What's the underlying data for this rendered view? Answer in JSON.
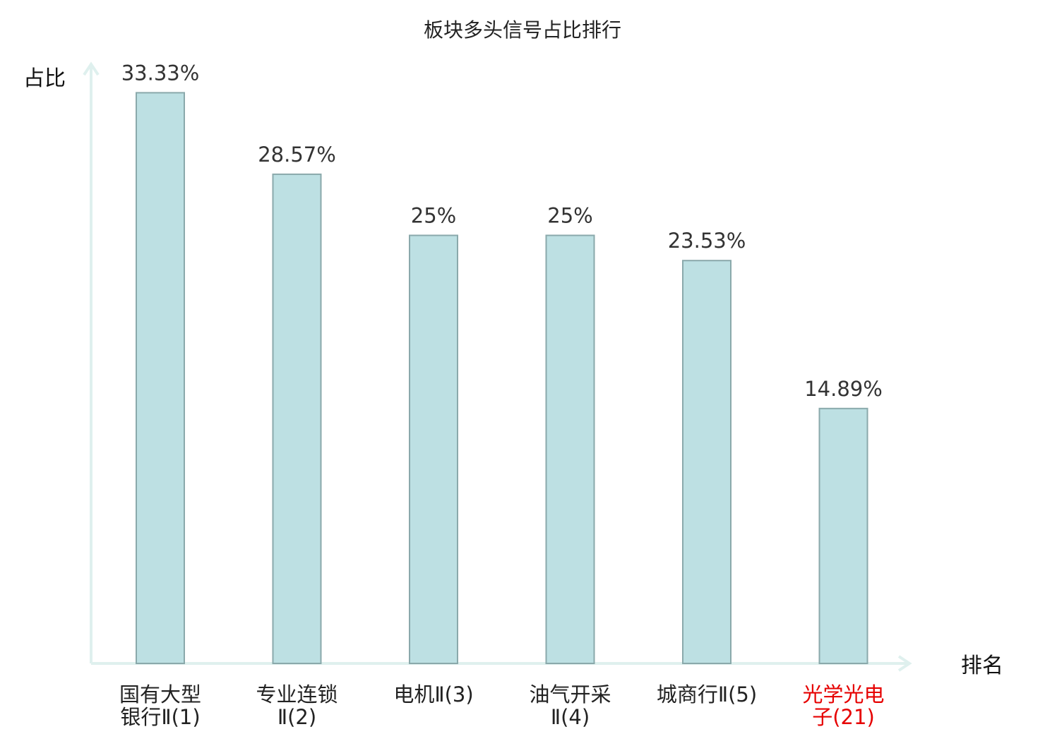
{
  "chart_data": {
    "type": "bar",
    "title": "板块多头信号占比排行",
    "xlabel": "排名",
    "ylabel": "占比",
    "categories": [
      [
        "国有大型",
        "银行Ⅱ(1)"
      ],
      [
        "专业连锁",
        "Ⅱ(2)"
      ],
      [
        "电机Ⅱ(3)"
      ],
      [
        "油气开采",
        "Ⅱ(4)"
      ],
      [
        "城商行Ⅱ(5)"
      ],
      [
        "光学光电",
        "子(21)"
      ]
    ],
    "values": [
      33.33,
      28.57,
      25,
      25,
      23.53,
      14.89
    ],
    "value_labels": [
      "33.33%",
      "28.57%",
      "25%",
      "25%",
      "23.53%",
      "14.89%"
    ],
    "highlight_index": 5,
    "ylim": [
      0,
      35
    ],
    "grid": false,
    "colors": {
      "bar_fill": "#bde0e3",
      "bar_stroke": "#8aa9ab",
      "axis": "#dff0ee",
      "highlight_text": "#e60000"
    }
  }
}
